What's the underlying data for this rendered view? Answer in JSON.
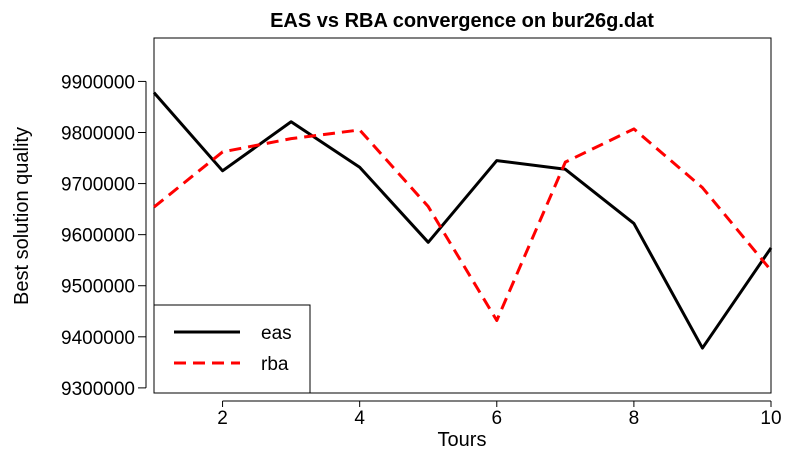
{
  "chart_data": {
    "type": "line",
    "title": "EAS vs RBA convergence on bur26g.dat",
    "xlabel": "Tours",
    "ylabel": "Best solution quality",
    "xlim": [
      1,
      10
    ],
    "ylim": [
      9290000,
      9985000
    ],
    "xticks": [
      2,
      4,
      6,
      8,
      10
    ],
    "yticks": [
      9300000,
      9400000,
      9500000,
      9600000,
      9700000,
      9800000,
      9900000
    ],
    "x": [
      1,
      2,
      3,
      4,
      5,
      6,
      7,
      8,
      9,
      10
    ],
    "series": [
      {
        "name": "eas",
        "color": "#000000",
        "dash": "solid",
        "values": [
          9878000,
          9725000,
          9821000,
          9732000,
          9585000,
          9745000,
          9728000,
          9622000,
          9378000,
          9574000
        ]
      },
      {
        "name": "rba",
        "color": "#ff0000",
        "dash": "dashed",
        "values": [
          9654000,
          9762000,
          9788000,
          9805000,
          9655000,
          9432000,
          9742000,
          9807000,
          9692000,
          9530000
        ]
      }
    ],
    "grid": false,
    "legend_position": "bottom-left"
  }
}
